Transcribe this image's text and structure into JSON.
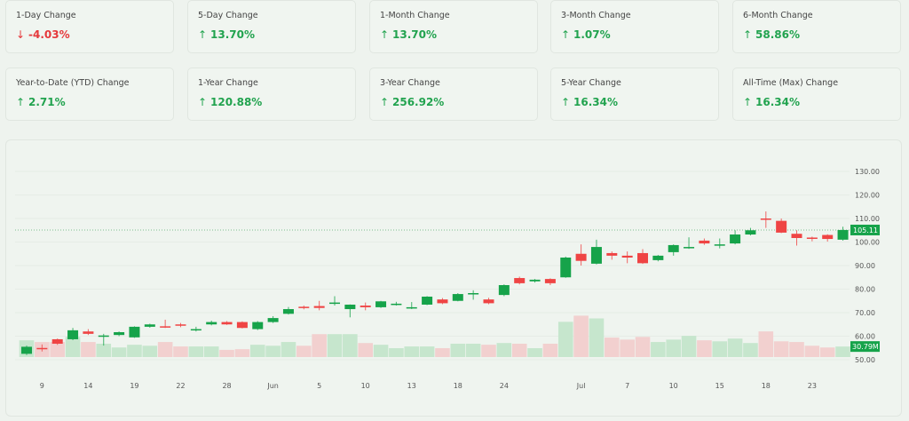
{
  "cards": [
    {
      "label": "1-Day Change",
      "value": "-4.03%",
      "direction": "down",
      "icon": "arrow-down-icon",
      "arrow": "↓"
    },
    {
      "label": "5-Day Change",
      "value": "13.70%",
      "direction": "up",
      "icon": "arrow-up-icon",
      "arrow": "↑"
    },
    {
      "label": "1-Month Change",
      "value": "13.70%",
      "direction": "up",
      "icon": "arrow-up-icon",
      "arrow": "↑"
    },
    {
      "label": "3-Month Change",
      "value": "1.07%",
      "direction": "up",
      "icon": "arrow-up-icon",
      "arrow": "↑"
    },
    {
      "label": "6-Month Change",
      "value": "58.86%",
      "direction": "up",
      "icon": "arrow-up-icon",
      "arrow": "↑"
    },
    {
      "label": "Year-to-Date (YTD) Change",
      "value": "2.71%",
      "direction": "up",
      "icon": "arrow-up-icon",
      "arrow": "↑"
    },
    {
      "label": "1-Year Change",
      "value": "120.88%",
      "direction": "up",
      "icon": "arrow-up-icon",
      "arrow": "↑"
    },
    {
      "label": "3-Year Change",
      "value": "256.92%",
      "direction": "up",
      "icon": "arrow-up-icon",
      "arrow": "↑"
    },
    {
      "label": "5-Year Change",
      "value": "16.34%",
      "direction": "up",
      "icon": "arrow-up-icon",
      "arrow": "↑"
    },
    {
      "label": "All-Time (Max) Change",
      "value": "16.34%",
      "direction": "up",
      "icon": "arrow-up-icon",
      "arrow": "↑"
    }
  ],
  "colors": {
    "up": "#16a34a",
    "down": "#ef4444",
    "up_volume": "#c6e6cd",
    "down_volume": "#f2d0cf",
    "background": "#eef3ee"
  },
  "chart_data": {
    "type": "candlestick",
    "price_axis": {
      "ticks": [
        "130.00",
        "120.00",
        "110.00",
        "100.00",
        "90.00",
        "80.00",
        "70.00",
        "60.00",
        "50.00"
      ],
      "range": [
        50,
        130
      ]
    },
    "last_price_label": "105.11",
    "last_price": 105.11,
    "last_volume_label": "30.79M",
    "x_ticks": [
      {
        "label": "9",
        "index": 1
      },
      {
        "label": "14",
        "index": 4
      },
      {
        "label": "19",
        "index": 7
      },
      {
        "label": "22",
        "index": 10
      },
      {
        "label": "28",
        "index": 13
      },
      {
        "label": "Jun",
        "index": 16
      },
      {
        "label": "5",
        "index": 19
      },
      {
        "label": "10",
        "index": 22
      },
      {
        "label": "13",
        "index": 25
      },
      {
        "label": "18",
        "index": 28
      },
      {
        "label": "24",
        "index": 31
      },
      {
        "label": "Jul",
        "index": 36
      },
      {
        "label": "7",
        "index": 39
      },
      {
        "label": "10",
        "index": 42
      },
      {
        "label": "15",
        "index": 45
      },
      {
        "label": "18",
        "index": 48
      },
      {
        "label": "23",
        "index": 51
      }
    ],
    "candles": [
      [
        52.5,
        56,
        52,
        55.5,
        49
      ],
      [
        55,
        56.5,
        53.5,
        54.5,
        44
      ],
      [
        58.7,
        59,
        56.3,
        56.8,
        44
      ],
      [
        58.7,
        63.5,
        58.3,
        62.5,
        59
      ],
      [
        62,
        63,
        60.5,
        61,
        44
      ],
      [
        60,
        61,
        56,
        60.3,
        39
      ],
      [
        60.5,
        62,
        60,
        61.7,
        28
      ],
      [
        59.5,
        64.2,
        59.3,
        64,
        36
      ],
      [
        64,
        65.3,
        63.6,
        65,
        33
      ],
      [
        64.2,
        67,
        63.5,
        64,
        44
      ],
      [
        65,
        65.6,
        63.8,
        64.5,
        31
      ],
      [
        62.5,
        64,
        62,
        63,
        31
      ],
      [
        65,
        66.6,
        64.6,
        66,
        31
      ],
      [
        66,
        66.4,
        64.8,
        65,
        21
      ],
      [
        66,
        66.3,
        63.3,
        63.5,
        23
      ],
      [
        63,
        66.4,
        62.6,
        66,
        36
      ],
      [
        66,
        68.5,
        65.6,
        67.7,
        33
      ],
      [
        69.5,
        72.4,
        69.2,
        71.5,
        44
      ],
      [
        72.5,
        73,
        71.4,
        72,
        33
      ],
      [
        72.8,
        75,
        71,
        72,
        67
      ],
      [
        74.2,
        77,
        73,
        74.3,
        67
      ],
      [
        71.5,
        73.5,
        68,
        73.4,
        67
      ],
      [
        73,
        74.3,
        71,
        72.3,
        41
      ],
      [
        72.3,
        75,
        72,
        74.8,
        36
      ],
      [
        73.7,
        74.6,
        73,
        73.8,
        26
      ],
      [
        72,
        74.5,
        71.5,
        72.3,
        31
      ],
      [
        73.4,
        77,
        73.2,
        76.8,
        31
      ],
      [
        75.6,
        76.2,
        73.6,
        74,
        26
      ],
      [
        75,
        78.3,
        74.8,
        77.9,
        39
      ],
      [
        78.2,
        79.5,
        75.5,
        78.3,
        39
      ],
      [
        75.6,
        76.3,
        73.6,
        74,
        36
      ],
      [
        77.5,
        82,
        77,
        81.7,
        41
      ],
      [
        84.7,
        85.3,
        82,
        82.5,
        39
      ],
      [
        83.3,
        84.3,
        82.8,
        84,
        26
      ],
      [
        84.3,
        84.6,
        81.7,
        82.5,
        39
      ],
      [
        85,
        93.8,
        84.8,
        93.4,
        103
      ],
      [
        95,
        99,
        90,
        92,
        121
      ],
      [
        90.8,
        101,
        90.5,
        97.9,
        113
      ],
      [
        95.3,
        96,
        92.5,
        94.2,
        57
      ],
      [
        94.2,
        96,
        91,
        93.4,
        51
      ],
      [
        95.3,
        97,
        90.7,
        91,
        59
      ],
      [
        92.3,
        94.5,
        91.8,
        94.2,
        44
      ],
      [
        95.7,
        99,
        94.2,
        98.7,
        51
      ],
      [
        97.4,
        102,
        97.1,
        97.9,
        62
      ],
      [
        100.6,
        101.5,
        98.8,
        99.4,
        49
      ],
      [
        98.9,
        101.5,
        97.3,
        99,
        46
      ],
      [
        99.4,
        105,
        99,
        103.2,
        54
      ],
      [
        103.2,
        106,
        102.8,
        105,
        41
      ],
      [
        110,
        113,
        106,
        109.8,
        75
      ],
      [
        109,
        110,
        103.8,
        104,
        46
      ],
      [
        103.5,
        105,
        98.5,
        101.7,
        44
      ],
      [
        101.9,
        102.3,
        100.3,
        101.7,
        33
      ],
      [
        103,
        103.3,
        100.2,
        101.3,
        28
      ],
      [
        101,
        106.5,
        100.6,
        105.11,
        30.79
      ]
    ],
    "candle_fields": [
      "open",
      "high",
      "low",
      "close",
      "volume_millions"
    ],
    "grid": true
  }
}
